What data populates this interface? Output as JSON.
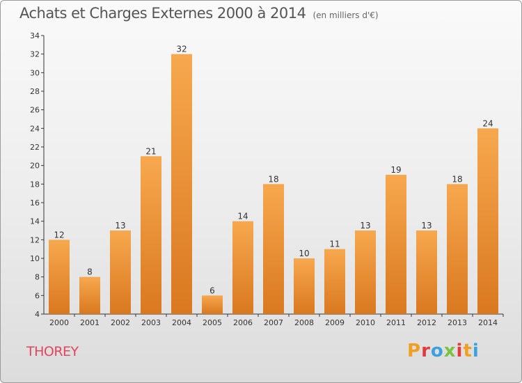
{
  "header": {
    "title": "Achats et Charges Externes 2000 à 2014",
    "unit": "(en milliers d'€)"
  },
  "footer": {
    "commune": "THOREY",
    "logo_text": "Proxiti",
    "logo_colors": [
      "#f0a020",
      "#e03c3c",
      "#3aa0e0",
      "#7cc242",
      "#e03c3c",
      "#f0a020",
      "#3aa0e0"
    ]
  },
  "colors": {
    "bar_light": "#f7a84e",
    "bar_dark": "#d9781f",
    "accent": "#e2455e"
  },
  "chart_data": {
    "type": "bar",
    "categories": [
      "2000",
      "2001",
      "2002",
      "2003",
      "2004",
      "2005",
      "2006",
      "2007",
      "2008",
      "2009",
      "2010",
      "2011",
      "2012",
      "2013",
      "2014"
    ],
    "values": [
      12,
      8,
      13,
      21,
      32,
      6,
      14,
      18,
      10,
      11,
      13,
      19,
      13,
      18,
      24
    ],
    "title": "Achats et Charges Externes 2000 à 2014",
    "ylim": [
      4,
      34
    ],
    "yticks": [
      4,
      6,
      8,
      10,
      12,
      14,
      16,
      18,
      20,
      22,
      24,
      26,
      28,
      30,
      32,
      34
    ],
    "grid": false,
    "legend": "none"
  }
}
